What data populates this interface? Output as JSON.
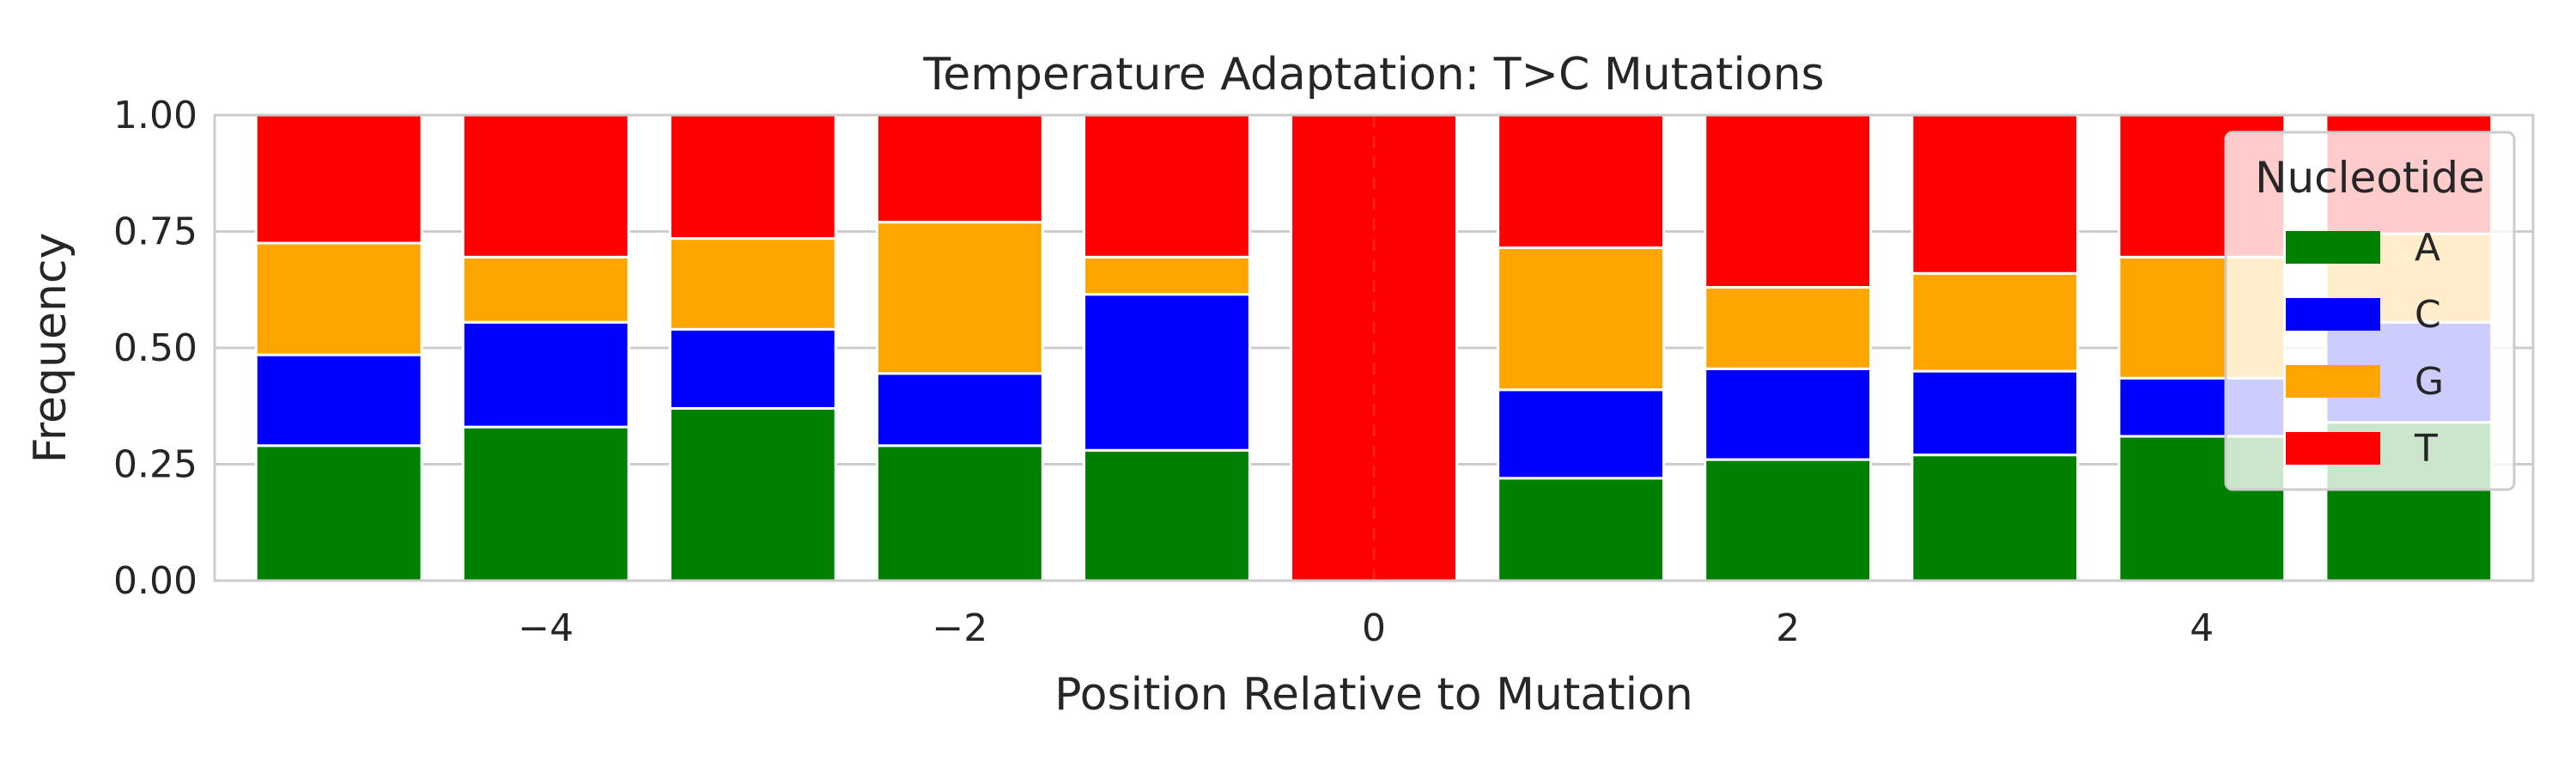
{
  "chart_data": {
    "type": "bar",
    "stacked": true,
    "title": "Temperature Adaptation: T>C Mutations",
    "xlabel": "Position Relative to Mutation",
    "ylabel": "Frequency",
    "x": [
      -5,
      -4,
      -3,
      -2,
      -1,
      0,
      1,
      2,
      3,
      4,
      5
    ],
    "xlim": [
      -5.6,
      5.6
    ],
    "ylim": [
      0,
      1
    ],
    "xticks": [
      -4,
      -2,
      0,
      2,
      4
    ],
    "xtick_labels": [
      "−4",
      "−2",
      "0",
      "2",
      "4"
    ],
    "yticks": [
      0,
      0.25,
      0.5,
      0.75,
      1
    ],
    "ytick_labels": [
      "0.00",
      "0.25",
      "0.50",
      "0.75",
      "1.00"
    ],
    "grid": true,
    "reference_line_x": 0,
    "legend": {
      "title": "Nucleotide",
      "placement": "top-right"
    },
    "series": [
      {
        "name": "A",
        "color": "#008000",
        "values": [
          0.29,
          0.33,
          0.37,
          0.29,
          0.28,
          0.0,
          0.22,
          0.26,
          0.27,
          0.31,
          0.34
        ]
      },
      {
        "name": "C",
        "color": "#0000ff",
        "values": [
          0.195,
          0.225,
          0.17,
          0.155,
          0.335,
          0.0,
          0.19,
          0.195,
          0.18,
          0.125,
          0.215
        ]
      },
      {
        "name": "G",
        "color": "#ffa500",
        "values": [
          0.24,
          0.14,
          0.195,
          0.325,
          0.08,
          0.0,
          0.305,
          0.175,
          0.21,
          0.26,
          0.19
        ]
      },
      {
        "name": "T",
        "color": "#ff0000",
        "values": [
          0.275,
          0.305,
          0.265,
          0.23,
          0.305,
          1.0,
          0.285,
          0.37,
          0.34,
          0.305,
          0.255
        ]
      }
    ]
  }
}
